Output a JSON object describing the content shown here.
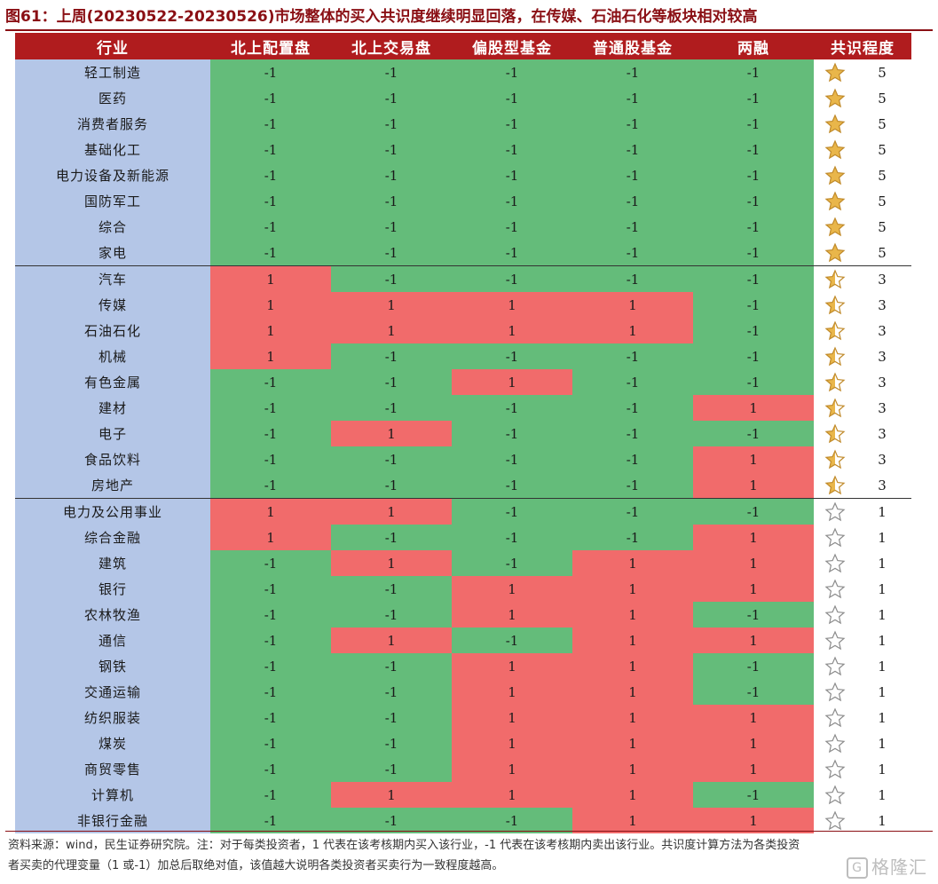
{
  "title": "图61：上周(20230522-20230526)市场整体的买入共识度继续明显回落，在传媒、石油石化等板块相对较高",
  "chart_data": {
    "type": "table",
    "columns": [
      "行业",
      "北上配置盘",
      "北上交易盘",
      "偏股型基金",
      "普通股基金",
      "两融",
      "共识程度"
    ],
    "rows": [
      {
        "industry": "轻工制造",
        "values": [
          -1,
          -1,
          -1,
          -1,
          -1
        ],
        "consensus": 5
      },
      {
        "industry": "医药",
        "values": [
          -1,
          -1,
          -1,
          -1,
          -1
        ],
        "consensus": 5
      },
      {
        "industry": "消费者服务",
        "values": [
          -1,
          -1,
          -1,
          -1,
          -1
        ],
        "consensus": 5
      },
      {
        "industry": "基础化工",
        "values": [
          -1,
          -1,
          -1,
          -1,
          -1
        ],
        "consensus": 5
      },
      {
        "industry": "电力设备及新能源",
        "values": [
          -1,
          -1,
          -1,
          -1,
          -1
        ],
        "consensus": 5
      },
      {
        "industry": "国防军工",
        "values": [
          -1,
          -1,
          -1,
          -1,
          -1
        ],
        "consensus": 5
      },
      {
        "industry": "综合",
        "values": [
          -1,
          -1,
          -1,
          -1,
          -1
        ],
        "consensus": 5
      },
      {
        "industry": "家电",
        "values": [
          -1,
          -1,
          -1,
          -1,
          -1
        ],
        "consensus": 5
      },
      {
        "industry": "汽车",
        "values": [
          1,
          -1,
          -1,
          -1,
          -1
        ],
        "consensus": 3
      },
      {
        "industry": "传媒",
        "values": [
          1,
          1,
          1,
          1,
          -1
        ],
        "consensus": 3
      },
      {
        "industry": "石油石化",
        "values": [
          1,
          1,
          1,
          1,
          -1
        ],
        "consensus": 3
      },
      {
        "industry": "机械",
        "values": [
          1,
          -1,
          -1,
          -1,
          -1
        ],
        "consensus": 3
      },
      {
        "industry": "有色金属",
        "values": [
          -1,
          -1,
          1,
          -1,
          -1
        ],
        "consensus": 3
      },
      {
        "industry": "建材",
        "values": [
          -1,
          -1,
          -1,
          -1,
          1
        ],
        "consensus": 3
      },
      {
        "industry": "电子",
        "values": [
          -1,
          1,
          -1,
          -1,
          -1
        ],
        "consensus": 3
      },
      {
        "industry": "食品饮料",
        "values": [
          -1,
          -1,
          -1,
          -1,
          1
        ],
        "consensus": 3
      },
      {
        "industry": "房地产",
        "values": [
          -1,
          -1,
          -1,
          -1,
          1
        ],
        "consensus": 3
      },
      {
        "industry": "电力及公用事业",
        "values": [
          1,
          1,
          -1,
          -1,
          -1
        ],
        "consensus": 1
      },
      {
        "industry": "综合金融",
        "values": [
          1,
          -1,
          -1,
          -1,
          1
        ],
        "consensus": 1
      },
      {
        "industry": "建筑",
        "values": [
          -1,
          1,
          -1,
          1,
          1
        ],
        "consensus": 1
      },
      {
        "industry": "银行",
        "values": [
          -1,
          -1,
          1,
          1,
          1
        ],
        "consensus": 1
      },
      {
        "industry": "农林牧渔",
        "values": [
          -1,
          -1,
          1,
          1,
          -1
        ],
        "consensus": 1
      },
      {
        "industry": "通信",
        "values": [
          -1,
          1,
          -1,
          1,
          1
        ],
        "consensus": 1
      },
      {
        "industry": "钢铁",
        "values": [
          -1,
          -1,
          1,
          1,
          -1
        ],
        "consensus": 1
      },
      {
        "industry": "交通运输",
        "values": [
          -1,
          -1,
          1,
          1,
          -1
        ],
        "consensus": 1
      },
      {
        "industry": "纺织服装",
        "values": [
          -1,
          -1,
          1,
          1,
          1
        ],
        "consensus": 1
      },
      {
        "industry": "煤炭",
        "values": [
          -1,
          -1,
          1,
          1,
          1
        ],
        "consensus": 1
      },
      {
        "industry": "商贸零售",
        "values": [
          -1,
          -1,
          1,
          1,
          1
        ],
        "consensus": 1
      },
      {
        "industry": "计算机",
        "values": [
          -1,
          1,
          1,
          1,
          -1
        ],
        "consensus": 1
      },
      {
        "industry": "非银行金融",
        "values": [
          -1,
          -1,
          -1,
          1,
          1
        ],
        "consensus": 1
      }
    ]
  },
  "colors": {
    "buy": "#f16b6b",
    "sell": "#64bc7a",
    "industry_bg": "#b4c6e7",
    "header_bg": "#b01c1e",
    "star_gold": "#e9b64a"
  },
  "icons": {
    "consensus_high": "star-filled-icon",
    "consensus_mid": "star-half-icon",
    "consensus_low": "star-empty-icon"
  },
  "footnote_line1": "资料来源：wind，民生证券研究院。注：对于每类投资者，1 代表在该考核期内买入该行业，-1 代表在该考核期内卖出该行业。共识度计算方法为各类投资",
  "footnote_line2": "者买卖的代理变量（1 或-1）加总后取绝对值，该值越大说明各类投资者买卖行为一致程度越高。",
  "watermark": "格隆汇"
}
